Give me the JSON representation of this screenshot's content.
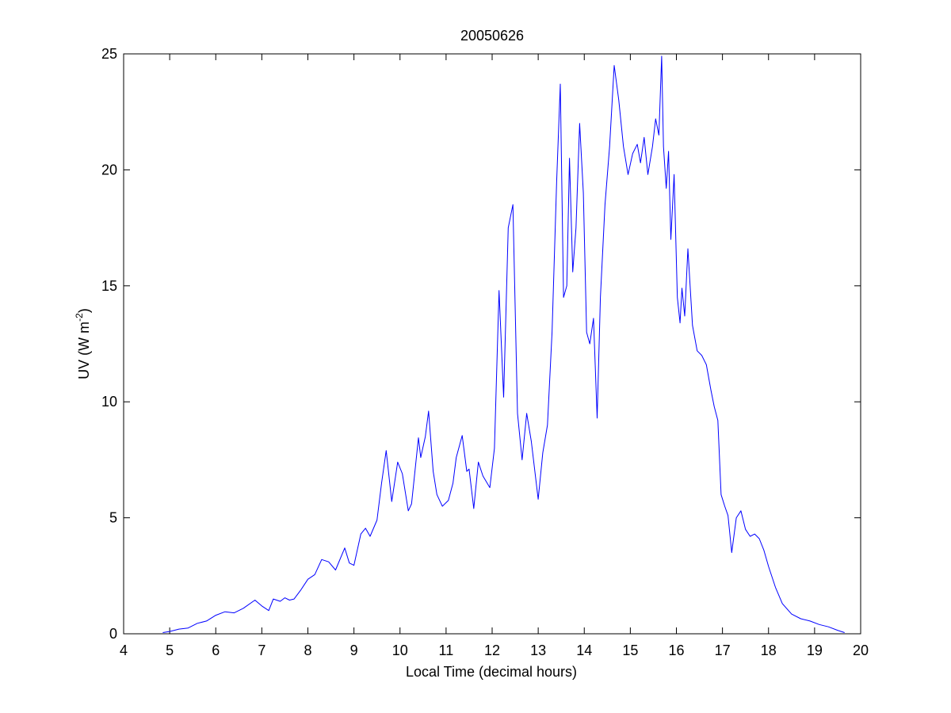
{
  "chart_data": {
    "type": "line",
    "title": "20050626",
    "xlabel": "Local Time (decimal hours)",
    "ylabel": "UV (W m",
    "ylabel_sup": "-2",
    "ylabel_suffix": ")",
    "xlim": [
      4,
      20
    ],
    "ylim": [
      0,
      25
    ],
    "xticks": [
      4,
      5,
      6,
      7,
      8,
      9,
      10,
      11,
      12,
      13,
      14,
      15,
      16,
      17,
      18,
      19,
      20
    ],
    "yticks": [
      0,
      5,
      10,
      15,
      20,
      25
    ],
    "grid": false,
    "line_color": "#0000ff",
    "series": [
      {
        "x": [
          4.85,
          5.0,
          5.2,
          5.4,
          5.6,
          5.8,
          6.0,
          6.2,
          6.4,
          6.6,
          6.85,
          7.0,
          7.15,
          7.25,
          7.4,
          7.5,
          7.6,
          7.7,
          7.85,
          8.0,
          8.15,
          8.3,
          8.45,
          8.6,
          8.8,
          8.9,
          9.0,
          9.15,
          9.25,
          9.35,
          9.5,
          9.6,
          9.7,
          9.82,
          9.95,
          10.05,
          10.18,
          10.25,
          10.4,
          10.45,
          10.55,
          10.62,
          10.72,
          10.8,
          10.92,
          11.05,
          11.15,
          11.22,
          11.35,
          11.45,
          11.5,
          11.6,
          11.7,
          11.8,
          11.95,
          12.05,
          12.15,
          12.25,
          12.35,
          12.45,
          12.55,
          12.65,
          12.75,
          12.85,
          13.0,
          13.1,
          13.2,
          13.3,
          13.4,
          13.48,
          13.55,
          13.62,
          13.68,
          13.75,
          13.82,
          13.9,
          13.98,
          14.05,
          14.12,
          14.2,
          14.28,
          14.35,
          14.45,
          14.55,
          14.65,
          14.75,
          14.85,
          14.95,
          15.05,
          15.15,
          15.22,
          15.3,
          15.38,
          15.48,
          15.55,
          15.62,
          15.68,
          15.72,
          15.78,
          15.83,
          15.88,
          15.95,
          16.02,
          16.08,
          16.12,
          16.18,
          16.25,
          16.35,
          16.45,
          16.55,
          16.65,
          16.75,
          16.82,
          16.9,
          16.97,
          17.05,
          17.12,
          17.2,
          17.3,
          17.4,
          17.5,
          17.6,
          17.7,
          17.8,
          17.9,
          18.0,
          18.15,
          18.3,
          18.5,
          18.7,
          18.9,
          19.1,
          19.3,
          19.5,
          19.65
        ],
        "y": [
          0.05,
          0.1,
          0.2,
          0.25,
          0.45,
          0.55,
          0.8,
          0.95,
          0.9,
          1.1,
          1.45,
          1.2,
          1.0,
          1.5,
          1.4,
          1.55,
          1.45,
          1.5,
          1.9,
          2.35,
          2.55,
          3.2,
          3.1,
          2.75,
          3.7,
          3.05,
          2.95,
          4.3,
          4.55,
          4.2,
          4.9,
          6.5,
          7.9,
          5.7,
          7.4,
          6.9,
          5.3,
          5.6,
          8.45,
          7.6,
          8.5,
          9.6,
          7.0,
          6.0,
          5.5,
          5.75,
          6.5,
          7.6,
          8.55,
          7.0,
          7.1,
          5.4,
          7.4,
          6.8,
          6.3,
          8.0,
          14.8,
          10.2,
          17.5,
          18.5,
          9.5,
          7.5,
          9.5,
          8.3,
          5.8,
          7.8,
          9.0,
          13.0,
          19.5,
          23.7,
          14.5,
          15.0,
          20.5,
          15.6,
          17.5,
          22.0,
          19.0,
          13.0,
          12.5,
          13.6,
          9.3,
          14.5,
          18.5,
          21.0,
          24.5,
          23.0,
          21.0,
          19.8,
          20.7,
          21.1,
          20.3,
          21.4,
          19.8,
          21.0,
          22.2,
          21.5,
          24.9,
          21.0,
          19.2,
          20.8,
          17.0,
          19.8,
          14.5,
          13.4,
          14.9,
          13.7,
          16.6,
          13.3,
          12.2,
          12.0,
          11.6,
          10.5,
          9.8,
          9.2,
          6.0,
          5.5,
          5.1,
          3.5,
          5.0,
          5.3,
          4.5,
          4.2,
          4.3,
          4.1,
          3.6,
          2.9,
          2.0,
          1.3,
          0.85,
          0.65,
          0.55,
          0.4,
          0.3,
          0.15,
          0.05
        ]
      }
    ]
  }
}
